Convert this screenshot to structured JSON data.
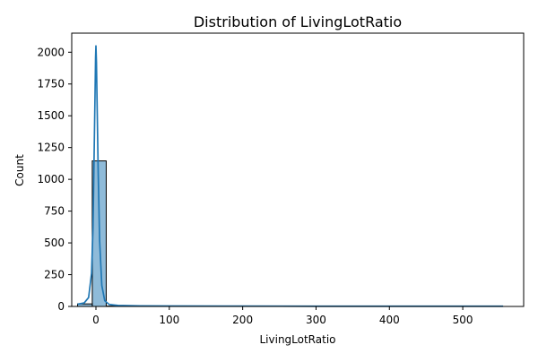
{
  "chart_data": {
    "type": "histogram",
    "title": "Distribution of LivingLotRatio",
    "xlabel": "LivingLotRatio",
    "ylabel": "Count",
    "xlim": [
      -33,
      583
    ],
    "ylim": [
      0,
      2150
    ],
    "xticks": [
      0,
      100,
      200,
      300,
      400,
      500
    ],
    "yticks": [
      0,
      250,
      500,
      750,
      1000,
      1250,
      1500,
      1750,
      2000
    ],
    "x_tick_labels": [
      "0",
      "100",
      "200",
      "300",
      "400",
      "500"
    ],
    "y_tick_labels": [
      "0",
      "250",
      "500",
      "750",
      "1000",
      "1250",
      "1500",
      "1750",
      "2000"
    ],
    "grid": false,
    "legend": "none",
    "colors": {
      "bar_fill": "#1f77b4",
      "bar_edge": "#000000",
      "kde_line": "#1f77b4",
      "axes": "#000000"
    },
    "bins": [
      {
        "start": -25.0,
        "end": -5.0,
        "count": 20
      },
      {
        "start": -5.0,
        "end": 14.0,
        "count": 1145
      },
      {
        "start": 14.0,
        "end": 550.0,
        "count": 3
      }
    ],
    "kde": {
      "x": [
        -25,
        -16,
        -10,
        -6,
        -4,
        -2.5,
        -1.2,
        -0.5,
        0,
        0.7,
        1.5,
        3,
        5,
        8,
        12,
        18,
        30,
        60,
        100,
        200,
        300,
        400,
        500,
        555
      ],
      "y": [
        18,
        28,
        70,
        260,
        620,
        1180,
        1680,
        1960,
        2050,
        1920,
        1620,
        1080,
        520,
        165,
        45,
        16,
        8,
        5,
        4,
        3,
        2,
        2,
        2,
        2
      ]
    }
  }
}
